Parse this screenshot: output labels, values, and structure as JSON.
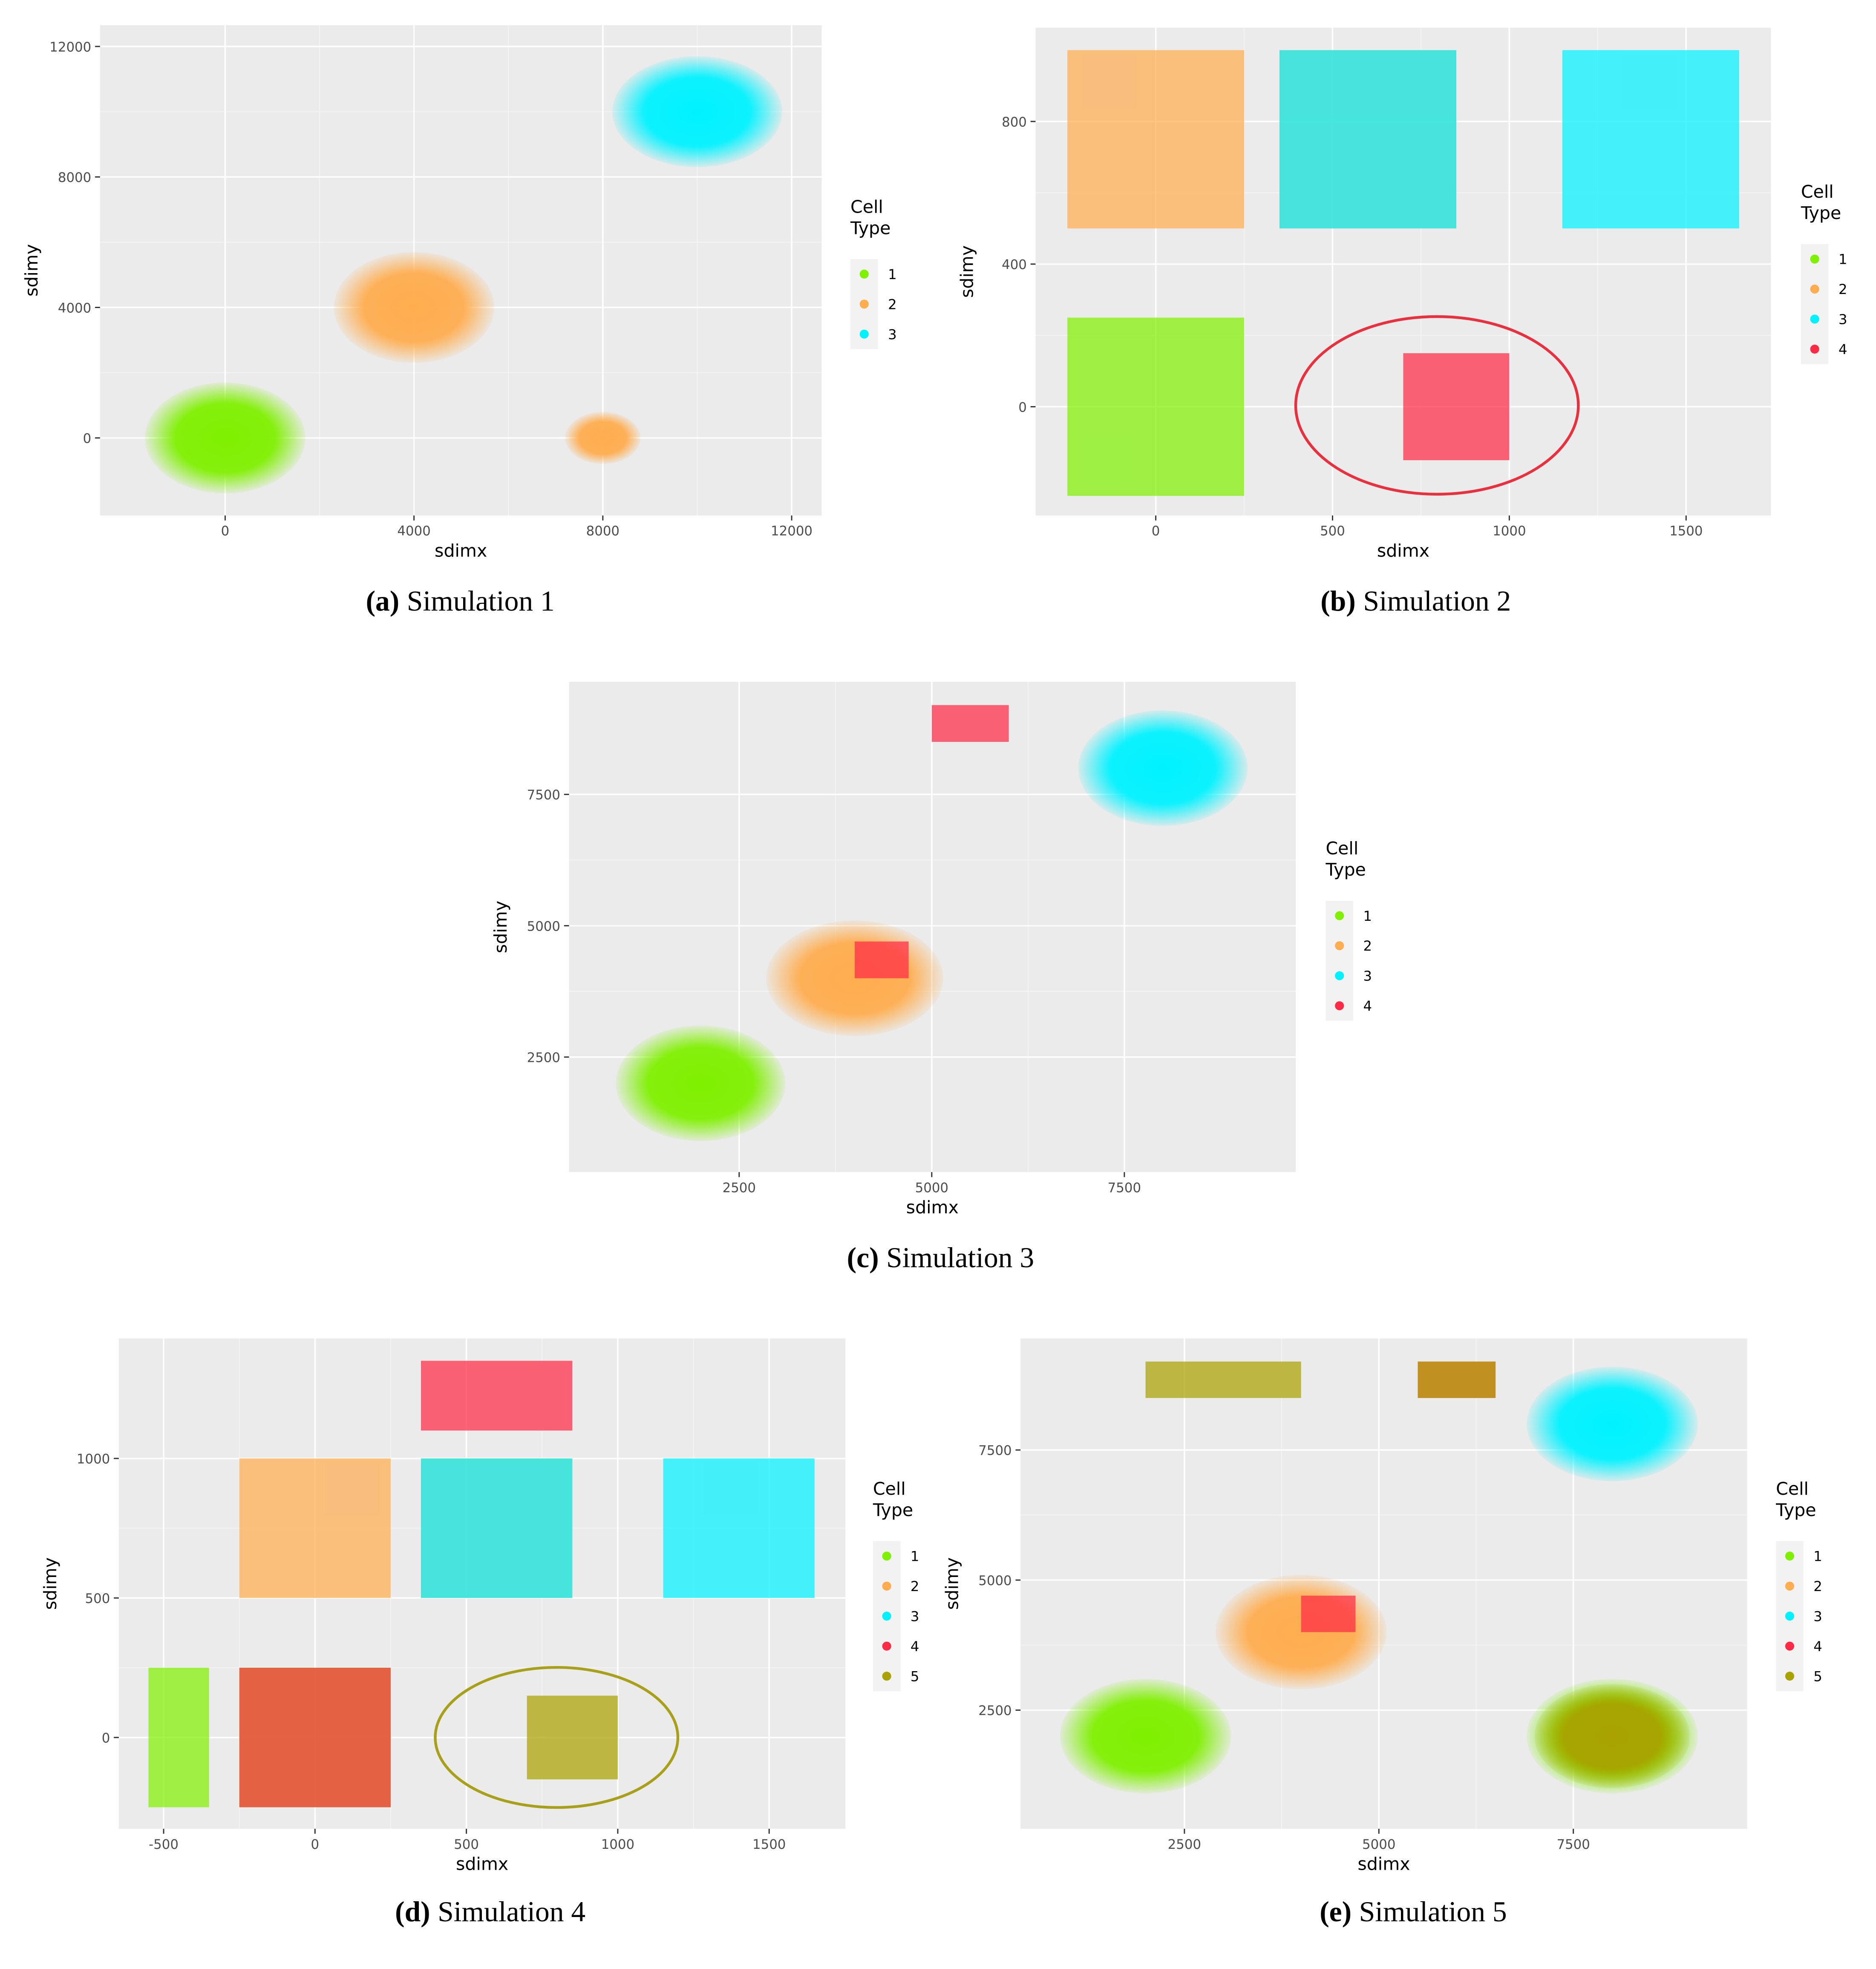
{
  "chart_data": [
    {
      "type": "scatter",
      "label": "(a)",
      "caption": "Simulation 1",
      "x_label": "sdimx",
      "y_label": "sdimy",
      "legend_title": "Cell Type",
      "xlim": [
        -2650,
        12636
      ],
      "ylim": [
        -2377,
        12652
      ],
      "xticks": [
        0,
        4000,
        8000,
        12000
      ],
      "yticks": [
        0,
        4000,
        8000,
        12000
      ],
      "grid": true,
      "series": [
        {
          "name": "1",
          "color": "#7ff000",
          "regions": [
            {
              "shape": "ellipse",
              "x": 0,
              "y": 0,
              "rx": 1700,
              "ry": 1700
            }
          ]
        },
        {
          "name": "2",
          "color": "#ffad4f",
          "regions": [
            {
              "shape": "ellipse",
              "x": 4000,
              "y": 4000,
              "rx": 1700,
              "ry": 1700
            },
            {
              "shape": "ellipse",
              "x": 8000,
              "y": 0,
              "rx": 800,
              "ry": 800
            }
          ]
        },
        {
          "name": "3",
          "color": "#00f2ff",
          "regions": [
            {
              "shape": "ellipse",
              "x": 10000,
              "y": 10000,
              "rx": 1800,
              "ry": 1700
            }
          ]
        }
      ]
    },
    {
      "type": "scatter",
      "label": "(b)",
      "caption": "Simulation 2",
      "x_label": "sdimx",
      "y_label": "sdimy",
      "legend_title": "Cell Type",
      "xlim": [
        -340,
        1740
      ],
      "ylim": [
        -305,
        1063
      ],
      "xticks": [
        0,
        500,
        1000,
        1500
      ],
      "yticks": [
        0,
        400,
        800
      ],
      "grid": true,
      "series": [
        {
          "name": "1",
          "color": "#7ff000",
          "regions": [
            {
              "shape": "rect",
              "x": [
                -250,
                250
              ],
              "y": [
                -250,
                250
              ]
            }
          ]
        },
        {
          "name": "2",
          "color": "#ffad4f",
          "regions": [
            {
              "shape": "rect",
              "x": [
                -250,
                250
              ],
              "y": [
                500,
                1000
              ]
            },
            {
              "shape": "rect",
              "x": [
                350,
                850
              ],
              "y": [
                500,
                1000
              ]
            }
          ]
        },
        {
          "name": "3",
          "color": "#00f2ff",
          "regions": [
            {
              "shape": "rect",
              "x": [
                350,
                850
              ],
              "y": [
                500,
                1000
              ]
            },
            {
              "shape": "rect",
              "x": [
                1150,
                1650
              ],
              "y": [
                500,
                1000
              ]
            }
          ]
        },
        {
          "name": "4",
          "color": "#ff2a45",
          "regions": [
            {
              "shape": "rect",
              "x": [
                700,
                1000
              ],
              "y": [
                -150,
                150
              ]
            }
          ]
        }
      ]
    },
    {
      "type": "scatter",
      "label": "(c)",
      "caption": "Simulation 3",
      "x_label": "sdimx",
      "y_label": "sdimy",
      "legend_title": "Cell Type",
      "xlim": [
        292,
        9724
      ],
      "ylim": [
        310,
        9643
      ],
      "xticks": [
        2500,
        5000,
        7500
      ],
      "yticks": [
        2500,
        5000,
        7500
      ],
      "grid": true,
      "series": [
        {
          "name": "1",
          "color": "#7ff000",
          "regions": [
            {
              "shape": "ellipse",
              "x": 2000,
              "y": 2000,
              "rx": 1100,
              "ry": 1100
            }
          ]
        },
        {
          "name": "2",
          "color": "#ffad4f",
          "regions": [
            {
              "shape": "ellipse",
              "x": 4000,
              "y": 4000,
              "rx": 1150,
              "ry": 1100
            }
          ]
        },
        {
          "name": "3",
          "color": "#00f2ff",
          "regions": [
            {
              "shape": "ellipse",
              "x": 8000,
              "y": 8000,
              "rx": 1100,
              "ry": 1100
            }
          ]
        },
        {
          "name": "4",
          "color": "#ff2a45",
          "regions": [
            {
              "shape": "rect",
              "x": [
                5000,
                6000
              ],
              "y": [
                8500,
                9200
              ]
            },
            {
              "shape": "rect",
              "x": [
                4000,
                4700
              ],
              "y": [
                4000,
                4700
              ]
            }
          ]
        }
      ]
    },
    {
      "type": "scatter",
      "label": "(d)",
      "caption": "Simulation 4",
      "x_label": "sdimx",
      "y_label": "sdimy",
      "legend_title": "Cell Type",
      "xlim": [
        -648,
        1752
      ],
      "ylim": [
        -327,
        1430
      ],
      "xticks": [
        -500,
        0,
        500,
        1000,
        1500
      ],
      "yticks": [
        0,
        500,
        1000
      ],
      "grid": true,
      "series": [
        {
          "name": "1",
          "color": "#7ff000",
          "regions": [
            {
              "shape": "rect",
              "x": [
                -550,
                -350
              ],
              "y": [
                -250,
                250
              ]
            },
            {
              "shape": "rect",
              "x": [
                -250,
                250
              ],
              "y": [
                -250,
                250
              ]
            }
          ]
        },
        {
          "name": "2",
          "color": "#ffad4f",
          "regions": [
            {
              "shape": "rect",
              "x": [
                -250,
                250
              ],
              "y": [
                500,
                1000
              ]
            },
            {
              "shape": "rect",
              "x": [
                350,
                850
              ],
              "y": [
                500,
                1000
              ]
            }
          ]
        },
        {
          "name": "3",
          "color": "#00f2ff",
          "regions": [
            {
              "shape": "rect",
              "x": [
                350,
                850
              ],
              "y": [
                500,
                1000
              ]
            },
            {
              "shape": "rect",
              "x": [
                1150,
                1650
              ],
              "y": [
                500,
                1000
              ]
            }
          ]
        },
        {
          "name": "4",
          "color": "#ff2a45",
          "regions": [
            {
              "shape": "rect",
              "x": [
                350,
                850
              ],
              "y": [
                1100,
                1350
              ]
            },
            {
              "shape": "rect",
              "x": [
                -250,
                250
              ],
              "y": [
                -250,
                250
              ]
            }
          ]
        },
        {
          "name": "5",
          "color": "#a9a200",
          "regions": [
            {
              "shape": "rect",
              "x": [
                700,
                1000
              ],
              "y": [
                -150,
                150
              ]
            }
          ]
        }
      ]
    },
    {
      "type": "scatter",
      "label": "(e)",
      "caption": "Simulation 5",
      "x_label": "sdimx",
      "y_label": "sdimy",
      "legend_title": "Cell Type",
      "xlim": [
        393,
        9735
      ],
      "ylim": [
        220,
        9644
      ],
      "xticks": [
        2500,
        5000,
        7500
      ],
      "yticks": [
        2500,
        5000,
        7500
      ],
      "grid": true,
      "series": [
        {
          "name": "1",
          "color": "#7ff000",
          "regions": [
            {
              "shape": "ellipse",
              "x": 2000,
              "y": 2000,
              "rx": 1100,
              "ry": 1100
            },
            {
              "shape": "ellipse",
              "x": 8000,
              "y": 2000,
              "rx": 1100,
              "ry": 1100
            }
          ]
        },
        {
          "name": "2",
          "color": "#ffad4f",
          "regions": [
            {
              "shape": "ellipse",
              "x": 4000,
              "y": 4000,
              "rx": 1100,
              "ry": 1100
            }
          ]
        },
        {
          "name": "3",
          "color": "#00f2ff",
          "regions": [
            {
              "shape": "ellipse",
              "x": 8000,
              "y": 8000,
              "rx": 1100,
              "ry": 1100
            }
          ]
        },
        {
          "name": "4",
          "color": "#ff2a45",
          "regions": [
            {
              "shape": "rect",
              "x": [
                4000,
                4700
              ],
              "y": [
                4000,
                4700
              ]
            },
            {
              "shape": "rect",
              "x": [
                5500,
                6500
              ],
              "y": [
                8500,
                9200
              ]
            }
          ]
        },
        {
          "name": "5",
          "color": "#a9a200",
          "regions": [
            {
              "shape": "rect",
              "x": [
                2000,
                4000
              ],
              "y": [
                8500,
                9200
              ]
            },
            {
              "shape": "rect",
              "x": [
                5500,
                6500
              ],
              "y": [
                8500,
                9200
              ]
            },
            {
              "shape": "ellipse",
              "x": 8000,
              "y": 2000,
              "rx": 1000,
              "ry": 1000
            }
          ]
        }
      ]
    }
  ]
}
